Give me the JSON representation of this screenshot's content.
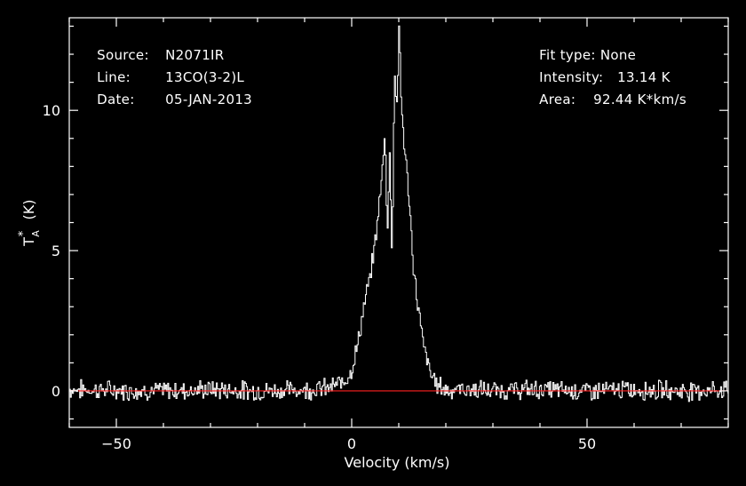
{
  "header": {
    "left": [
      {
        "label": "Source:",
        "value": "N2071IR"
      },
      {
        "label": "Line:",
        "value": "13CO(3-2)L"
      },
      {
        "label": "Date:",
        "value": "05-JAN-2013"
      }
    ],
    "right": [
      {
        "label": "Fit type:",
        "value": "None"
      },
      {
        "label": "Intensity:",
        "value": "13.14 K"
      },
      {
        "label": "Area:",
        "value": "92.44 K*km/s"
      }
    ]
  },
  "colors": {
    "background": "#000000",
    "axes": "#ffffff",
    "spectrum": "#ffffff",
    "baseline": "#ff2020"
  },
  "chart_data": {
    "type": "line",
    "xlabel": "Velocity (km/s)",
    "ylabel_main": "T",
    "ylabel_sub": "A",
    "ylabel_sup": "*",
    "ylabel_unit": "(K)",
    "xlim": [
      -60,
      80
    ],
    "ylim": [
      -1.3,
      13.3
    ],
    "xticks": [
      -50,
      0,
      50
    ],
    "xtick_labels": [
      "−50",
      "0",
      "50"
    ],
    "yticks": [
      0,
      5,
      10
    ],
    "ytick_labels": [
      "0",
      "5",
      "10"
    ],
    "baseline_y": 0,
    "series": [
      {
        "x": [
          -60,
          -50,
          -40,
          -30,
          -20,
          -10,
          -5,
          -2,
          0,
          1,
          2,
          3,
          4,
          5,
          6,
          7,
          7.5,
          8,
          8.5,
          9,
          9.5,
          10,
          10.5,
          11,
          12,
          13,
          14,
          15,
          16,
          17,
          18,
          20,
          25,
          30,
          40,
          50,
          60,
          70,
          80
        ],
        "y": [
          0.05,
          0.02,
          0.0,
          0.05,
          0.0,
          0.05,
          0.1,
          0.3,
          0.8,
          1.5,
          2.5,
          3.4,
          4.2,
          5.5,
          7.0,
          9.3,
          5.5,
          8.5,
          4.8,
          11.5,
          10.0,
          13.1,
          10.0,
          9.0,
          7.0,
          4.5,
          3.0,
          1.8,
          1.0,
          0.5,
          0.25,
          0.05,
          0.05,
          0.0,
          0.05,
          0.0,
          0.05,
          0.0,
          0.05
        ]
      }
    ]
  }
}
